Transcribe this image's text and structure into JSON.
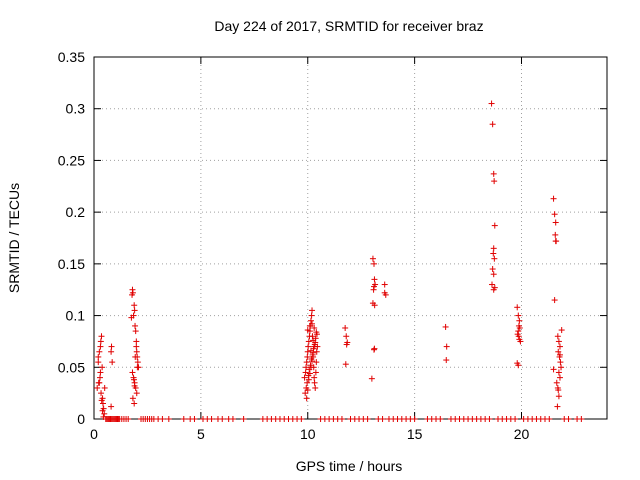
{
  "chart_data": {
    "type": "scatter",
    "title": "Day 224 of 2017, SRMTID for receiver braz",
    "xlabel": "GPS time / hours",
    "ylabel": "SRMTID / TECUs",
    "xlim": [
      0,
      24
    ],
    "ylim": [
      0,
      0.35
    ],
    "xticks": [
      0,
      5,
      10,
      15,
      20
    ],
    "xtick_labels": [
      "0",
      "5",
      "10",
      "15",
      "20"
    ],
    "yticks": [
      0,
      0.05,
      0.1,
      0.15,
      0.2,
      0.25,
      0.3,
      0.35
    ],
    "ytick_labels": [
      "0",
      "0.05",
      "0.1",
      "0.15",
      "0.2",
      "0.25",
      "0.3",
      "0.35"
    ],
    "grid": true,
    "marker": "+",
    "color": "#e00000",
    "series": [
      {
        "name": "SRMTID",
        "x": [
          0.15,
          0.2,
          0.22,
          0.25,
          0.28,
          0.3,
          0.32,
          0.35,
          0.38,
          0.4,
          0.42,
          0.45,
          0.48,
          0.5,
          0.3,
          0.33,
          0.36,
          0.4,
          0.44,
          0.25,
          0.2,
          0.8,
          0.82,
          0.85,
          0.8,
          0.78,
          1.75,
          1.78,
          1.8,
          1.82,
          1.85,
          1.88,
          1.9,
          1.92,
          1.95,
          1.98,
          2.0,
          2.02,
          2.05,
          2.08,
          1.8,
          1.85,
          1.9,
          1.95,
          2.0,
          1.82,
          1.88,
          1.93,
          1.98,
          2.03,
          1.87,
          1.9,
          9.85,
          9.9,
          9.92,
          9.95,
          9.98,
          10.0,
          10.02,
          10.05,
          10.08,
          10.1,
          10.12,
          10.15,
          10.18,
          10.2,
          10.22,
          10.25,
          10.28,
          10.3,
          10.32,
          10.35,
          10.38,
          10.4,
          10.42,
          10.45,
          9.88,
          9.93,
          9.97,
          10.03,
          10.07,
          10.13,
          10.17,
          10.23,
          10.27,
          10.33,
          10.37,
          10.43,
          9.95,
          10.0,
          10.05,
          10.1,
          10.15,
          10.2,
          10.25,
          10.3,
          10.35,
          10.0,
          10.1,
          10.2,
          10.3,
          10.4,
          10.15,
          10.25,
          11.75,
          11.8,
          11.82,
          11.85,
          11.78,
          13.05,
          13.1,
          13.12,
          13.15,
          13.1,
          13.08,
          13.13,
          13.05,
          13.1,
          13.12,
          13.0,
          13.6,
          13.65,
          13.6,
          16.45,
          16.5,
          16.48,
          18.6,
          18.65,
          18.7,
          18.72,
          18.75,
          18.7,
          18.68,
          18.73,
          18.65,
          18.7,
          18.62,
          18.75,
          18.7,
          19.8,
          19.85,
          19.9,
          19.88,
          19.92,
          19.85,
          19.82,
          19.87,
          19.9,
          19.95,
          19.8,
          19.85,
          21.5,
          21.55,
          21.6,
          21.58,
          21.62,
          21.55,
          21.7,
          21.75,
          21.8,
          21.72,
          21.78,
          21.82,
          21.85,
          21.75,
          21.8,
          21.65,
          21.7,
          21.88,
          21.75,
          21.68,
          21.72,
          21.8,
          21.5,
          21.6,
          0.55,
          0.6,
          0.65,
          0.7,
          0.75,
          0.8,
          0.85,
          0.9,
          0.95,
          1.0,
          1.05,
          1.1,
          1.15,
          1.2,
          1.3,
          1.4,
          1.5,
          1.6,
          2.2,
          2.3,
          2.4,
          2.5,
          2.6,
          2.7,
          2.8,
          3.0,
          3.2,
          3.5,
          4.2,
          4.5,
          4.7,
          5.1,
          5.3,
          5.5,
          5.8,
          6.0,
          6.3,
          6.5,
          7.0,
          7.9,
          8.1,
          8.3,
          8.5,
          8.7,
          8.9,
          9.1,
          9.3,
          9.5,
          9.7,
          10.6,
          10.8,
          11.0,
          11.2,
          11.4,
          11.6,
          12.0,
          12.2,
          12.4,
          12.6,
          12.8,
          13.3,
          13.5,
          13.8,
          14.0,
          14.2,
          14.4,
          14.6,
          14.8,
          15.0,
          15.6,
          15.8,
          16.0,
          16.2,
          16.7,
          16.9,
          17.1,
          17.3,
          17.5,
          17.7,
          17.9,
          18.1,
          18.3,
          18.5,
          18.9,
          19.1,
          19.3,
          19.5,
          19.7,
          20.1,
          20.3,
          20.5,
          20.7,
          20.9,
          21.1,
          21.3,
          22.0,
          22.2,
          22.6,
          22.8
        ],
        "y": [
          0.03,
          0.06,
          0.035,
          0.065,
          0.04,
          0.07,
          0.075,
          0.08,
          0.05,
          0.02,
          0.015,
          0.01,
          0.005,
          0.03,
          0.045,
          0.025,
          0.018,
          0.008,
          0.002,
          0.035,
          0.055,
          0.065,
          0.07,
          0.055,
          0.012,
          0.0,
          0.098,
          0.12,
          0.125,
          0.122,
          0.1,
          0.11,
          0.105,
          0.09,
          0.085,
          0.075,
          0.065,
          0.06,
          0.055,
          0.05,
          0.045,
          0.04,
          0.035,
          0.03,
          0.025,
          0.02,
          0.015,
          0.06,
          0.07,
          0.05,
          0.038,
          0.032,
          0.04,
          0.045,
          0.05,
          0.055,
          0.06,
          0.065,
          0.07,
          0.075,
          0.08,
          0.085,
          0.09,
          0.095,
          0.1,
          0.105,
          0.08,
          0.06,
          0.05,
          0.04,
          0.035,
          0.03,
          0.045,
          0.055,
          0.065,
          0.07,
          0.025,
          0.03,
          0.035,
          0.042,
          0.048,
          0.052,
          0.058,
          0.062,
          0.068,
          0.072,
          0.078,
          0.082,
          0.02,
          0.028,
          0.038,
          0.044,
          0.05,
          0.056,
          0.064,
          0.07,
          0.074,
          0.086,
          0.09,
          0.092,
          0.088,
          0.084,
          0.066,
          0.076,
          0.088,
          0.08,
          0.072,
          0.074,
          0.053,
          0.155,
          0.15,
          0.135,
          0.13,
          0.128,
          0.125,
          0.11,
          0.112,
          0.067,
          0.068,
          0.039,
          0.13,
          0.12,
          0.122,
          0.089,
          0.07,
          0.057,
          0.305,
          0.285,
          0.237,
          0.23,
          0.187,
          0.165,
          0.16,
          0.155,
          0.145,
          0.14,
          0.13,
          0.127,
          0.125,
          0.108,
          0.1,
          0.095,
          0.09,
          0.088,
          0.085,
          0.082,
          0.08,
          0.077,
          0.075,
          0.054,
          0.052,
          0.213,
          0.198,
          0.19,
          0.178,
          0.172,
          0.115,
          0.08,
          0.075,
          0.07,
          0.065,
          0.06,
          0.055,
          0.05,
          0.045,
          0.04,
          0.035,
          0.03,
          0.086,
          0.022,
          0.012,
          0.028,
          0.062,
          0.048,
          0.172,
          0,
          0,
          0,
          0,
          0,
          0,
          0,
          0,
          0,
          0,
          0,
          0,
          0,
          0,
          0,
          0,
          0,
          0,
          0,
          0,
          0,
          0,
          0,
          0,
          0,
          0,
          0,
          0,
          0,
          0,
          0,
          0,
          0,
          0,
          0,
          0,
          0,
          0,
          0,
          0,
          0,
          0,
          0,
          0,
          0,
          0,
          0,
          0,
          0,
          0,
          0,
          0,
          0,
          0,
          0,
          0,
          0,
          0,
          0,
          0,
          0,
          0,
          0,
          0,
          0,
          0,
          0,
          0,
          0,
          0,
          0,
          0,
          0,
          0,
          0,
          0,
          0,
          0,
          0,
          0,
          0,
          0,
          0,
          0,
          0,
          0,
          0,
          0,
          0,
          0,
          0,
          0,
          0,
          0,
          0,
          0,
          0,
          0,
          0
        ]
      }
    ]
  }
}
